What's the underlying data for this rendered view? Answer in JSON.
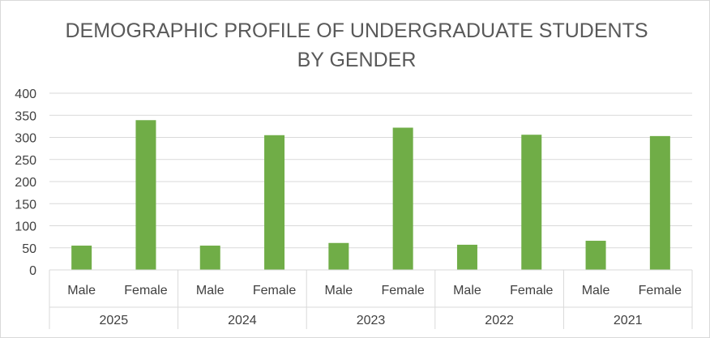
{
  "chart_data": {
    "type": "bar",
    "title_lines": [
      "DEMOGRAPHIC PROFILE OF UNDERGRADUATE STUDENTS",
      "BY GENDER"
    ],
    "xlabel": "",
    "ylabel": "",
    "ylim": [
      0,
      400
    ],
    "y_ticks": [
      0,
      50,
      100,
      150,
      200,
      250,
      300,
      350,
      400
    ],
    "grid": true,
    "legend": "none",
    "bar_color": "#70ad47",
    "groups": [
      {
        "label": "2025",
        "categories": [
          "Male",
          "Female"
        ],
        "values": [
          55,
          339
        ]
      },
      {
        "label": "2024",
        "categories": [
          "Male",
          "Female"
        ],
        "values": [
          55,
          305
        ]
      },
      {
        "label": "2023",
        "categories": [
          "Male",
          "Female"
        ],
        "values": [
          61,
          322
        ]
      },
      {
        "label": "2022",
        "categories": [
          "Male",
          "Female"
        ],
        "values": [
          57,
          306
        ]
      },
      {
        "label": "2021",
        "categories": [
          "Male",
          "Female"
        ],
        "values": [
          66,
          303
        ]
      }
    ]
  }
}
